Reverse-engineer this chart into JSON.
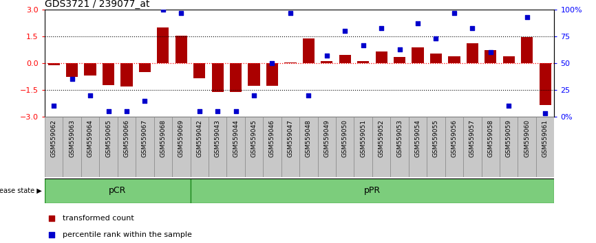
{
  "title": "GDS3721 / 239077_at",
  "samples": [
    "GSM559062",
    "GSM559063",
    "GSM559064",
    "GSM559065",
    "GSM559066",
    "GSM559067",
    "GSM559068",
    "GSM559069",
    "GSM559042",
    "GSM559043",
    "GSM559044",
    "GSM559045",
    "GSM559046",
    "GSM559047",
    "GSM559048",
    "GSM559049",
    "GSM559050",
    "GSM559051",
    "GSM559052",
    "GSM559053",
    "GSM559054",
    "GSM559055",
    "GSM559056",
    "GSM559057",
    "GSM559058",
    "GSM559059",
    "GSM559060",
    "GSM559061"
  ],
  "transformed_counts": [
    -0.12,
    -0.75,
    -0.7,
    -1.25,
    -1.3,
    -0.5,
    2.0,
    1.55,
    -0.85,
    -1.6,
    -1.62,
    -1.28,
    -1.28,
    0.05,
    1.4,
    0.1,
    0.45,
    0.1,
    0.65,
    0.35,
    0.9,
    0.55,
    0.4,
    1.1,
    0.75,
    0.4,
    1.45,
    -2.35
  ],
  "percentile_ranks": [
    10,
    35,
    20,
    5,
    5,
    15,
    100,
    97,
    5,
    5,
    5,
    20,
    50,
    97,
    20,
    57,
    80,
    67,
    83,
    63,
    87,
    73,
    97,
    83,
    60,
    10,
    93,
    3
  ],
  "pCR_count": 8,
  "bar_color": "#AA0000",
  "dot_color": "#0000CC",
  "ylim": [
    -3,
    3
  ],
  "hline_dotted_vals": [
    1.5,
    -1.5
  ],
  "background_color": "#ffffff",
  "title_fontsize": 10,
  "tick_label_fontsize": 6.5,
  "disease_state_label": "disease state",
  "legend_labels": [
    "transformed count",
    "percentile rank within the sample"
  ],
  "pCR_color": "#7CCD7C",
  "pPR_color": "#7CCD7C",
  "group_border_color": "#228B22",
  "gray_box_color": "#C8C8C8",
  "gray_box_edge_color": "#888888"
}
